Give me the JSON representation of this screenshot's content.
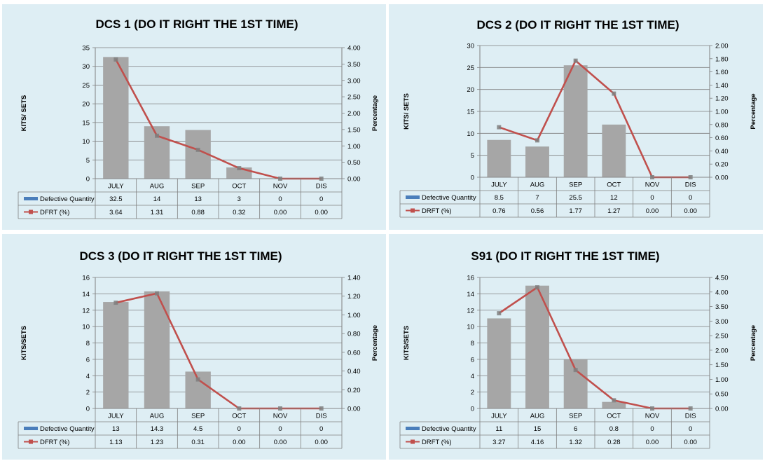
{
  "chart_data": [
    {
      "type": "bar",
      "title": "DCS 1 (DO IT RIGHT THE 1ST TIME)",
      "ylabel": "KITS/ SETS",
      "y2label": "Percentage",
      "ylim": [
        0,
        35
      ],
      "yticks": [
        "0",
        "5",
        "10",
        "15",
        "20",
        "25",
        "30",
        "35"
      ],
      "y2lim": [
        0,
        4
      ],
      "y2ticks": [
        "0.00",
        "0.50",
        "1.00",
        "1.50",
        "2.00",
        "2.50",
        "3.00",
        "3.50",
        "4.00"
      ],
      "categories": [
        "JULY",
        "AUG",
        "SEP",
        "OCT",
        "NOV",
        "DIS"
      ],
      "series": [
        {
          "name": "Defective Quantity",
          "kind": "bar",
          "axis": "left",
          "values": [
            32.5,
            14,
            13,
            3,
            0,
            0
          ],
          "labels": [
            "32.5",
            "14",
            "13",
            "3",
            "0",
            "0"
          ],
          "color": "#4a7ebb"
        },
        {
          "name": "DFRT (%)",
          "kind": "line",
          "axis": "right",
          "values": [
            3.64,
            1.31,
            0.88,
            0.32,
            0.0,
            0.0
          ],
          "labels": [
            "3.64",
            "1.31",
            "0.88",
            "0.32",
            "0.00",
            "0.00"
          ],
          "color": "#c0504d"
        }
      ]
    },
    {
      "type": "bar",
      "title": "DCS 2 (DO IT RIGHT THE 1ST TIME)",
      "ylabel": "KITS/ SETS",
      "y2label": "Percentage",
      "ylim": [
        0,
        30
      ],
      "yticks": [
        "0",
        "5",
        "10",
        "15",
        "20",
        "25",
        "30"
      ],
      "y2lim": [
        0,
        2
      ],
      "y2ticks": [
        "0.00",
        "0.20",
        "0.40",
        "0.60",
        "0.80",
        "1.00",
        "1.20",
        "1.40",
        "1.60",
        "1.80",
        "2.00"
      ],
      "categories": [
        "JULY",
        "AUG",
        "SEP",
        "OCT",
        "NOV",
        "DIS"
      ],
      "series": [
        {
          "name": "Defective Quantity",
          "kind": "bar",
          "axis": "left",
          "values": [
            8.5,
            7,
            25.5,
            12,
            0,
            0
          ],
          "labels": [
            "8.5",
            "7",
            "25.5",
            "12",
            "0",
            "0"
          ],
          "color": "#4a7ebb"
        },
        {
          "name": "DRFT (%)",
          "kind": "line",
          "axis": "right",
          "values": [
            0.76,
            0.56,
            1.77,
            1.27,
            0.0,
            0.0
          ],
          "labels": [
            "0.76",
            "0.56",
            "1.77",
            "1.27",
            "0.00",
            "0.00"
          ],
          "color": "#c0504d"
        }
      ]
    },
    {
      "type": "bar",
      "title": "DCS 3 (DO IT RIGHT THE 1ST TIME)",
      "ylabel": "KITS/SETS",
      "y2label": "Percentage",
      "ylim": [
        0,
        16
      ],
      "yticks": [
        "0",
        "2",
        "4",
        "6",
        "8",
        "10",
        "12",
        "14",
        "16"
      ],
      "y2lim": [
        0,
        1.4
      ],
      "y2ticks": [
        "0.00",
        "0.20",
        "0.40",
        "0.60",
        "0.80",
        "1.00",
        "1.20",
        "1.40"
      ],
      "categories": [
        "JULY",
        "AUG",
        "SEP",
        "OCT",
        "NOV",
        "DIS"
      ],
      "series": [
        {
          "name": "Defective Quantity",
          "kind": "bar",
          "axis": "left",
          "values": [
            13,
            14.3,
            4.5,
            0,
            0,
            0
          ],
          "labels": [
            "13",
            "14.3",
            "4.5",
            "0",
            "0",
            "0"
          ],
          "color": "#4a7ebb"
        },
        {
          "name": "DFRT (%)",
          "kind": "line",
          "axis": "right",
          "values": [
            1.13,
            1.23,
            0.31,
            0.0,
            0.0,
            0.0
          ],
          "labels": [
            "1.13",
            "1.23",
            "0.31",
            "0.00",
            "0.00",
            "0.00"
          ],
          "color": "#c0504d"
        }
      ]
    },
    {
      "type": "bar",
      "title": "S91 (DO IT RIGHT THE 1ST TIME)",
      "ylabel": "KITS/SETS",
      "y2label": "Percentage",
      "ylim": [
        0,
        16
      ],
      "yticks": [
        "0",
        "2",
        "4",
        "6",
        "8",
        "10",
        "12",
        "14",
        "16"
      ],
      "y2lim": [
        0,
        4.5
      ],
      "y2ticks": [
        "0.00",
        "0.50",
        "1.00",
        "1.50",
        "2.00",
        "2.50",
        "3.00",
        "3.50",
        "4.00",
        "4.50"
      ],
      "categories": [
        "JULY",
        "AUG",
        "SEP",
        "OCT",
        "NOV",
        "DIS"
      ],
      "series": [
        {
          "name": "Defective Quantity",
          "kind": "bar",
          "axis": "left",
          "values": [
            11,
            15,
            6,
            0.8,
            0,
            0
          ],
          "labels": [
            "11",
            "15",
            "6",
            "0.8",
            "0",
            "0"
          ],
          "color": "#4a7ebb"
        },
        {
          "name": "DRFT (%)",
          "kind": "line",
          "axis": "right",
          "values": [
            3.27,
            4.16,
            1.32,
            0.28,
            0.0,
            0.0
          ],
          "labels": [
            "3.27",
            "4.16",
            "1.32",
            "0.28",
            "0.00",
            "0.00"
          ],
          "color": "#c0504d"
        }
      ]
    }
  ]
}
